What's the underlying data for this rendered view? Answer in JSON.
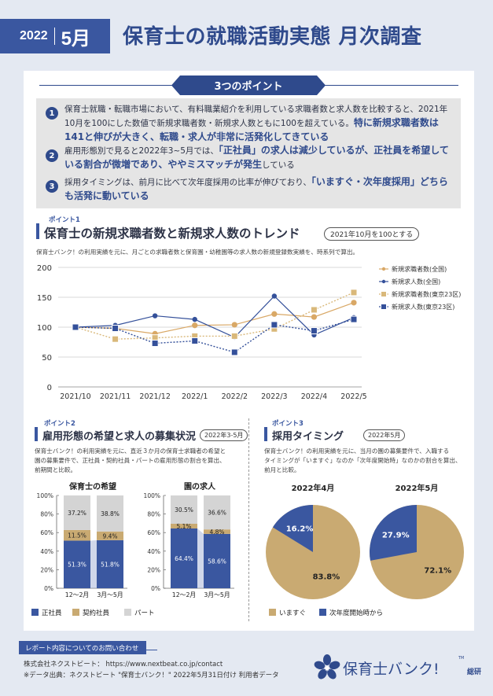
{
  "header": {
    "year": "2022",
    "month": "5月",
    "title": "保育士の就職活動実態 月次調査"
  },
  "points": {
    "tab_label": "3つのポイント",
    "items": [
      {
        "num": "1",
        "text": "保育士就職・転職市場において、有料職業紹介を利用している求職者数と求人数を比較すると、2021年10月を100にした数値で新規求職者数・新規求人数ともに100を超えている。",
        "highlight": "特に新規求職者数は141と伸びが大きく、転職・求人が非常に活発化してきている"
      },
      {
        "num": "2",
        "text": "雇用形態別で見ると2022年3~5月では、",
        "highlight": "「正社員」の求人は減少しているが、正社員を希望している割合が微増であり、ややミスマッチが発生",
        "tail": "している"
      },
      {
        "num": "3",
        "text": "採用タイミングは、前月に比べて次年度採用の比率が伸びており、",
        "highlight": "「いますぐ・次年度採用」どちらも活発に動いている"
      }
    ]
  },
  "section1": {
    "kicker": "ポイント1",
    "title": "保育士の新規求職者数と新規求人数のトレンド",
    "pill": "2021年10月を100とする",
    "desc": "保育士バンク！の利用実績を元に、月ごとの求職者数と保育園・幼稚園等の求人数の新規登録数実績を、時系列で算出。"
  },
  "section2": {
    "kicker": "ポイント2",
    "title": "雇用形態の希望と求人の募集状況",
    "pill": "2022年3-5月",
    "desc_lines": [
      "保育士バンク！の利用実績を元に、直近３か月の保育士求職者の希望と",
      "園の募集要件で、正社員・契約社員・パートの雇用形態の割合を算出、",
      "前期間と比較。"
    ]
  },
  "section3": {
    "kicker": "ポイント3",
    "title": "採用タイミング",
    "pill": "2022年5月",
    "desc_lines": [
      "保育士バンク！の利用実績を元に、当月の園の募集要件で、入職する",
      "タイミングが「いますぐ」なのか「次年度開始時」なのかの割合を算出、",
      "前月と比較。"
    ]
  },
  "chart_data": [
    {
      "type": "line",
      "categories": [
        "2021/10",
        "2021/11",
        "2021/12",
        "2022/1",
        "2022/2",
        "2022/3",
        "2022/4",
        "2022/5"
      ],
      "ylim": [
        0,
        200
      ],
      "yticks": [
        0,
        50,
        100,
        150,
        200
      ],
      "legend": "right",
      "series": [
        {
          "name": "新規求職者数(全国)",
          "values": [
            100,
            98,
            89,
            103,
            104,
            122,
            117,
            141
          ],
          "color": "#d9a866",
          "style": "solid",
          "marker": "dot"
        },
        {
          "name": "新規求人数(全国)",
          "values": [
            100,
            103,
            119,
            113,
            83,
            152,
            87,
            116
          ],
          "color": "#34509a",
          "style": "solid",
          "marker": "dot"
        },
        {
          "name": "新規求職者数(東京23区)",
          "values": [
            100,
            80,
            82,
            85,
            85,
            97,
            129,
            158
          ],
          "color": "#d9b87a",
          "style": "dotted",
          "marker": "square"
        },
        {
          "name": "新規求人数(東京23区)",
          "values": [
            100,
            98,
            73,
            77,
            58,
            104,
            94,
            113
          ],
          "color": "#34509a",
          "style": "dotted",
          "marker": "square"
        }
      ]
    },
    {
      "type": "bar",
      "title": "保育士の希望",
      "stacked": true,
      "categories": [
        "12～2月",
        "3月～5月"
      ],
      "yticks": [
        "0%",
        "20%",
        "40%",
        "60%",
        "80%",
        "100%"
      ],
      "series": [
        {
          "name": "正社員",
          "values": [
            51.3,
            51.8
          ],
          "labels": [
            "51.3%",
            "51.8%"
          ],
          "color": "#3a57a0"
        },
        {
          "name": "契約社員",
          "values": [
            11.5,
            9.4
          ],
          "labels": [
            "11.5%",
            "9.4%"
          ],
          "color": "#c9aa72"
        },
        {
          "name": "パート",
          "values": [
            37.2,
            38.8
          ],
          "labels": [
            "37.2%",
            "38.8%"
          ],
          "color": "#d4d4d4"
        }
      ]
    },
    {
      "type": "bar",
      "title": "園の求人",
      "stacked": true,
      "categories": [
        "12～2月",
        "3月～5月"
      ],
      "yticks": [
        "0%",
        "20%",
        "40%",
        "60%",
        "80%",
        "100%"
      ],
      "series": [
        {
          "name": "正社員",
          "values": [
            64.4,
            58.6
          ],
          "labels": [
            "64.4%",
            "58.6%"
          ],
          "color": "#3a57a0"
        },
        {
          "name": "契約社員",
          "values": [
            5.1,
            4.8
          ],
          "labels": [
            "5.1%",
            "4.8%"
          ],
          "color": "#c9aa72"
        },
        {
          "name": "パート",
          "values": [
            30.5,
            36.6
          ],
          "labels": [
            "30.5%",
            "36.6%"
          ],
          "color": "#d4d4d4"
        }
      ]
    },
    {
      "type": "pie",
      "title": "2022年4月",
      "slices": [
        {
          "name": "いますぐ",
          "value": 83.8,
          "label": "83.8%",
          "color": "#c9aa72"
        },
        {
          "name": "次年度開始時から",
          "value": 16.2,
          "label": "16.2%",
          "color": "#3a57a0"
        }
      ]
    },
    {
      "type": "pie",
      "title": "2022年5月",
      "slices": [
        {
          "name": "いますぐ",
          "value": 72.1,
          "label": "72.1%",
          "color": "#c9aa72"
        },
        {
          "name": "次年度開始時から",
          "value": 27.9,
          "label": "27.9%",
          "color": "#3a57a0"
        }
      ]
    }
  ],
  "bar_legend": [
    "正社員",
    "契約社員",
    "パート"
  ],
  "pie_legend": [
    "いますぐ",
    "次年度開始時から"
  ],
  "contact": {
    "badge": "レポート内容についてのお問い合わせ",
    "company": "株式会社ネクストビート：",
    "url": "https://www.nextbeat.co.jp/contact",
    "source": "※データ出典：ネクストビート \"保育士バンク！\" 2022年5月31日付け 利用者データ"
  },
  "logo": {
    "text": "保育士バンク!",
    "sub": "総研",
    "tm": "TM"
  },
  "colors": {
    "navy": "#2f4a8c",
    "blue": "#3a57a0",
    "gold": "#c9aa72",
    "gray": "#d4d4d4",
    "bg": "#e4e9f2"
  }
}
